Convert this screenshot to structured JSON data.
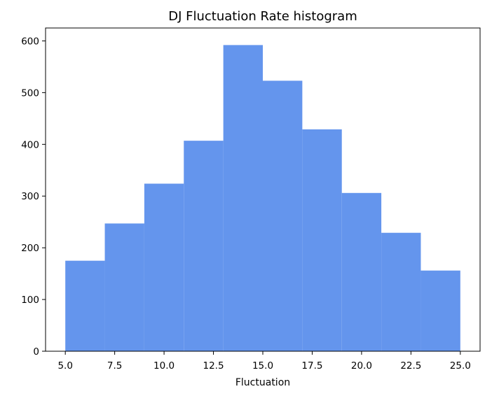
{
  "chart_data": {
    "type": "bar",
    "title": "DJ Fluctuation Rate histogram",
    "xlabel": "Fluctuation",
    "ylabel": "",
    "bin_edges": [
      5,
      7,
      9,
      11,
      13,
      15,
      17,
      19,
      21,
      23,
      25
    ],
    "values": [
      175,
      247,
      324,
      407,
      592,
      523,
      429,
      306,
      229,
      156
    ],
    "xlim": [
      4,
      26
    ],
    "ylim": [
      0,
      625
    ],
    "xticks": [
      "5.0",
      "7.5",
      "10.0",
      "12.5",
      "15.0",
      "17.5",
      "20.0",
      "22.5",
      "25.0"
    ],
    "yticks": [
      "0",
      "100",
      "200",
      "300",
      "400",
      "500",
      "600"
    ],
    "bar_color": "#6495ED",
    "grid": false,
    "legend": null
  }
}
